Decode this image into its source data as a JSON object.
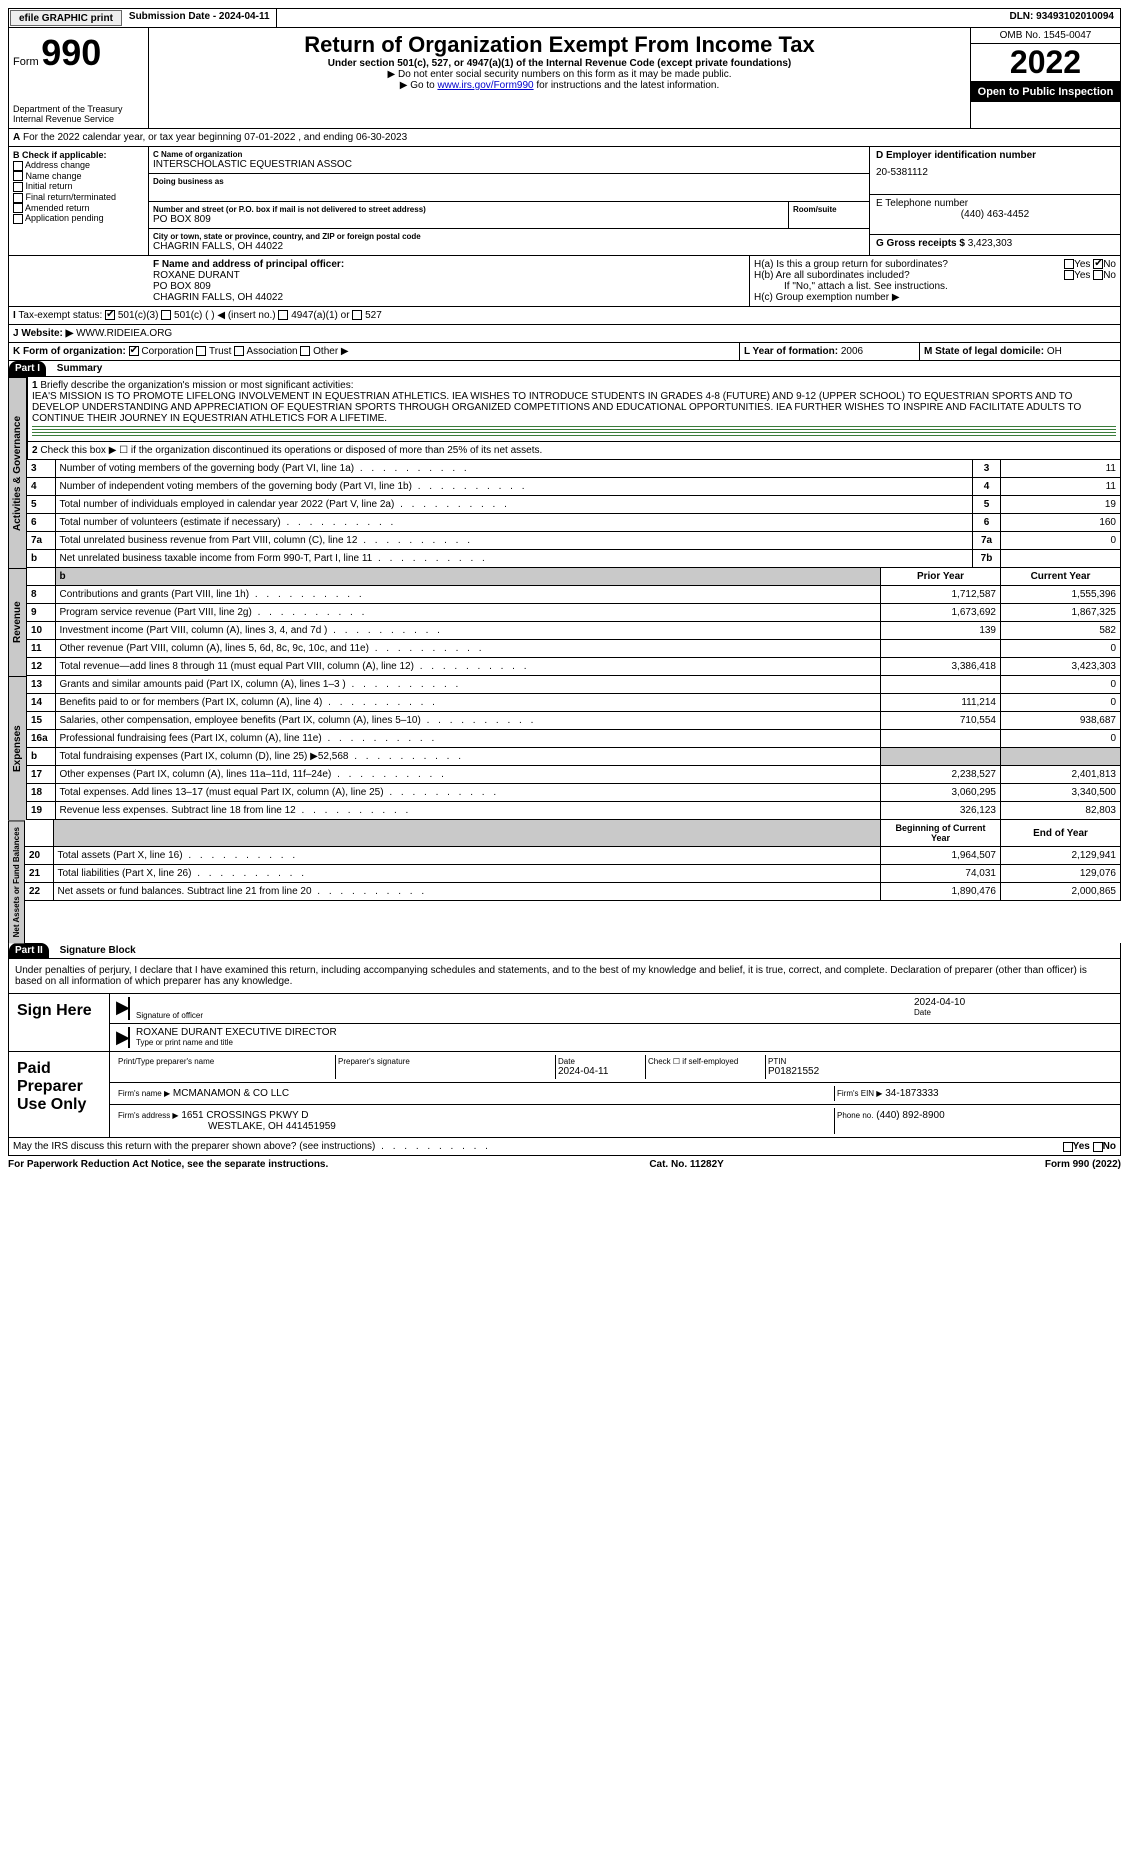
{
  "topbar": {
    "efile": "efile GRAPHIC print",
    "submission": "Submission Date - 2024-04-11",
    "dln": "DLN: 93493102010094"
  },
  "header": {
    "form_word": "Form",
    "form_no": "990",
    "dept": "Department of the Treasury Internal Revenue Service",
    "title": "Return of Organization Exempt From Income Tax",
    "subtitle": "Under section 501(c), 527, or 4947(a)(1) of the Internal Revenue Code (except private foundations)",
    "inst1": "Do not enter social security numbers on this form as it may be made public.",
    "inst2_pre": "Go to ",
    "inst2_link": "www.irs.gov/Form990",
    "inst2_post": " for instructions and the latest information.",
    "omb": "OMB No. 1545-0047",
    "year": "2022",
    "open": "Open to Public Inspection"
  },
  "A": {
    "text": "For the 2022 calendar year, or tax year beginning 07-01-2022    , and ending 06-30-2023"
  },
  "B": {
    "label": "B Check if applicable:",
    "items": [
      "Address change",
      "Name change",
      "Initial return",
      "Final return/terminated",
      "Amended return",
      "Application pending"
    ]
  },
  "C": {
    "name_label": "C Name of organization",
    "name": "INTERSCHOLASTIC EQUESTRIAN ASSOC",
    "dba_label": "Doing business as",
    "dba": "",
    "street_label": "Number and street (or P.O. box if mail is not delivered to street address)",
    "street": "PO BOX 809",
    "suite_label": "Room/suite",
    "city_label": "City or town, state or province, country, and ZIP or foreign postal code",
    "city": "CHAGRIN FALLS, OH   44022"
  },
  "D": {
    "label": "D Employer identification number",
    "value": "20-5381112"
  },
  "E": {
    "label": "E Telephone number",
    "value": "(440) 463-4452"
  },
  "G": {
    "label": "G Gross receipts $",
    "value": "3,423,303"
  },
  "F": {
    "label": "F  Name and address of principal officer:",
    "name": "ROXANE DURANT",
    "street": "PO BOX 809",
    "city": "CHAGRIN FALLS, OH   44022"
  },
  "H": {
    "a": "H(a)  Is this a group return for subordinates?",
    "b": "H(b)  Are all subordinates included?",
    "note": "If \"No,\" attach a list. See instructions.",
    "c": "H(c)  Group exemption number ▶",
    "yes": "Yes",
    "no": "No"
  },
  "I": {
    "label": "Tax-exempt status:",
    "opts": [
      "501(c)(3)",
      "501(c) (   ) ◀ (insert no.)",
      "4947(a)(1) or",
      "527"
    ]
  },
  "J": {
    "label": "Website: ▶",
    "value": "WWW.RIDEIEA.ORG"
  },
  "K": {
    "label": "K Form of organization:",
    "opts": [
      "Corporation",
      "Trust",
      "Association",
      "Other ▶"
    ]
  },
  "L": {
    "label": "L Year of formation:",
    "value": "2006"
  },
  "M": {
    "label": "M State of legal domicile:",
    "value": "OH"
  },
  "parts": {
    "p1": "Part I",
    "p1_title": "Summary",
    "p2": "Part II",
    "p2_title": "Signature Block"
  },
  "summary": {
    "q1": "Briefly describe the organization's mission or most significant activities:",
    "mission": "IEA'S MISSION IS TO PROMOTE LIFELONG INVOLVEMENT IN EQUESTRIAN ATHLETICS. IEA WISHES TO INTRODUCE STUDENTS IN GRADES 4-8 (FUTURE) AND 9-12 (UPPER SCHOOL) TO EQUESTRIAN SPORTS AND TO DEVELOP UNDERSTANDING AND APPRECIATION OF EQUESTRIAN SPORTS THROUGH ORGANIZED COMPETITIONS AND EDUCATIONAL OPPORTUNITIES. IEA FURTHER WISHES TO INSPIRE AND FACILITATE ADULTS TO CONTINUE THEIR JOURNEY IN EQUESTRIAN ATHLETICS FOR A LIFETIME.",
    "q2": "Check this box ▶ ☐  if the organization discontinued its operations or disposed of more than 25% of its net assets.",
    "governance": [
      {
        "n": "3",
        "desc": "Number of voting members of the governing body (Part VI, line 1a)",
        "key": "3",
        "val": "11"
      },
      {
        "n": "4",
        "desc": "Number of independent voting members of the governing body (Part VI, line 1b)",
        "key": "4",
        "val": "11"
      },
      {
        "n": "5",
        "desc": "Total number of individuals employed in calendar year 2022 (Part V, line 2a)",
        "key": "5",
        "val": "19"
      },
      {
        "n": "6",
        "desc": "Total number of volunteers (estimate if necessary)",
        "key": "6",
        "val": "160"
      },
      {
        "n": "7a",
        "desc": "Total unrelated business revenue from Part VIII, column (C), line 12",
        "key": "7a",
        "val": "0"
      },
      {
        "n": "b",
        "desc": "Net unrelated business taxable income from Form 990-T, Part I, line 11",
        "key": "7b",
        "val": ""
      }
    ],
    "prior_header": "Prior Year",
    "current_header": "Current Year",
    "revenue": [
      {
        "n": "8",
        "desc": "Contributions and grants (Part VIII, line 1h)",
        "prior": "1,712,587",
        "curr": "1,555,396"
      },
      {
        "n": "9",
        "desc": "Program service revenue (Part VIII, line 2g)",
        "prior": "1,673,692",
        "curr": "1,867,325"
      },
      {
        "n": "10",
        "desc": "Investment income (Part VIII, column (A), lines 3, 4, and 7d )",
        "prior": "139",
        "curr": "582"
      },
      {
        "n": "11",
        "desc": "Other revenue (Part VIII, column (A), lines 5, 6d, 8c, 9c, 10c, and 11e)",
        "prior": "",
        "curr": "0"
      },
      {
        "n": "12",
        "desc": "Total revenue—add lines 8 through 11 (must equal Part VIII, column (A), line 12)",
        "prior": "3,386,418",
        "curr": "3,423,303"
      }
    ],
    "expenses": [
      {
        "n": "13",
        "desc": "Grants and similar amounts paid (Part IX, column (A), lines 1–3 )",
        "prior": "",
        "curr": "0"
      },
      {
        "n": "14",
        "desc": "Benefits paid to or for members (Part IX, column (A), line 4)",
        "prior": "111,214",
        "curr": "0"
      },
      {
        "n": "15",
        "desc": "Salaries, other compensation, employee benefits (Part IX, column (A), lines 5–10)",
        "prior": "710,554",
        "curr": "938,687"
      },
      {
        "n": "16a",
        "desc": "Professional fundraising fees (Part IX, column (A), line 11e)",
        "prior": "",
        "curr": "0"
      },
      {
        "n": "b",
        "desc": "Total fundraising expenses (Part IX, column (D), line 25) ▶52,568",
        "prior": "SHADE",
        "curr": "SHADE"
      },
      {
        "n": "17",
        "desc": "Other expenses (Part IX, column (A), lines 11a–11d, 11f–24e)",
        "prior": "2,238,527",
        "curr": "2,401,813"
      },
      {
        "n": "18",
        "desc": "Total expenses. Add lines 13–17 (must equal Part IX, column (A), line 25)",
        "prior": "3,060,295",
        "curr": "3,340,500"
      },
      {
        "n": "19",
        "desc": "Revenue less expenses. Subtract line 18 from line 12",
        "prior": "326,123",
        "curr": "82,803"
      }
    ],
    "begin_header": "Beginning of Current Year",
    "end_header": "End of Year",
    "netassets": [
      {
        "n": "20",
        "desc": "Total assets (Part X, line 16)",
        "prior": "1,964,507",
        "curr": "2,129,941"
      },
      {
        "n": "21",
        "desc": "Total liabilities (Part X, line 26)",
        "prior": "74,031",
        "curr": "129,076"
      },
      {
        "n": "22",
        "desc": "Net assets or fund balances. Subtract line 21 from line 20",
        "prior": "1,890,476",
        "curr": "2,000,865"
      }
    ],
    "side_labels": {
      "ag": "Activities & Governance",
      "rev": "Revenue",
      "exp": "Expenses",
      "na": "Net Assets or Fund Balances"
    }
  },
  "sig": {
    "declaration": "Under penalties of perjury, I declare that I have examined this return, including accompanying schedules and statements, and to the best of my knowledge and belief, it is true, correct, and complete. Declaration of preparer (other than officer) is based on all information of which preparer has any knowledge.",
    "sign_here": "Sign Here",
    "sig_officer": "Signature of officer",
    "date1": "2024-04-10",
    "date_label": "Date",
    "name_title": "ROXANE DURANT  EXECUTIVE DIRECTOR",
    "name_title_label": "Type or print name and title",
    "paid": "Paid Preparer Use Only",
    "pp_name_label": "Print/Type preparer's name",
    "pp_sig_label": "Preparer's signature",
    "pp_date_label": "Date",
    "pp_date": "2024-04-11",
    "self_emp": "Check ☐ if self-employed",
    "ptin_label": "PTIN",
    "ptin": "P01821552",
    "firm_name_label": "Firm's name    ▶",
    "firm_name": "MCMANAMON & CO LLC",
    "firm_ein_label": "Firm's EIN ▶",
    "firm_ein": "34-1873333",
    "firm_addr_label": "Firm's address ▶",
    "firm_addr1": "1651 CROSSINGS PKWY D",
    "firm_addr2": "WESTLAKE, OH   441451959",
    "phone_label": "Phone no.",
    "phone": "(440) 892-8900",
    "discuss": "May the IRS discuss this return with the preparer shown above? (see instructions)",
    "yes": "Yes",
    "no": "No"
  },
  "footer": {
    "left": "For Paperwork Reduction Act Notice, see the separate instructions.",
    "mid": "Cat. No. 11282Y",
    "right": "Form 990 (2022)"
  }
}
